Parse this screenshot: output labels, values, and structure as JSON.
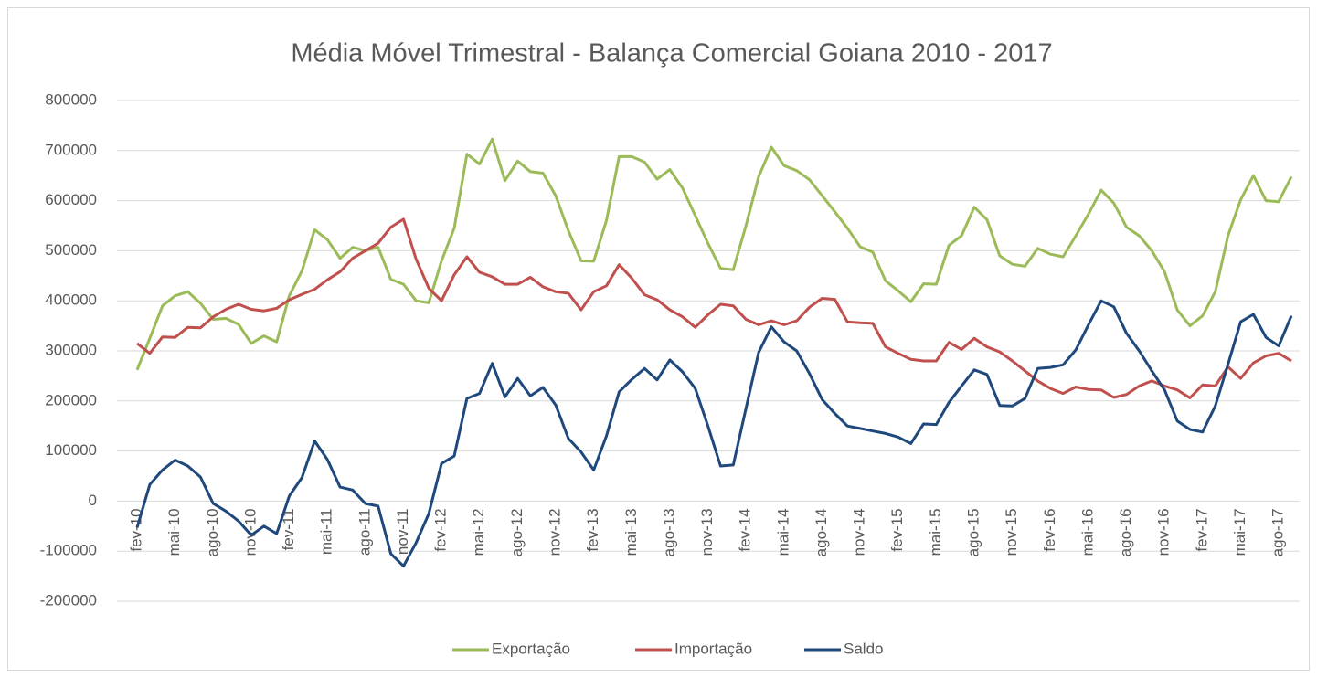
{
  "chart_data": {
    "type": "line",
    "title": "Média Móvel Trimestral - Balança Comercial Goiana 2010 - 2017",
    "categories": [
      "fev-10",
      null,
      null,
      "mai-10",
      null,
      null,
      "ago-10",
      null,
      null,
      "nov-10",
      null,
      null,
      "fev-11",
      null,
      null,
      "mai-11",
      null,
      null,
      "ago-11",
      null,
      null,
      "nov-11",
      null,
      null,
      "fev-12",
      null,
      null,
      "mai-12",
      null,
      null,
      "ago-12",
      null,
      null,
      "nov-12",
      null,
      null,
      "fev-13",
      null,
      null,
      "mai-13",
      null,
      null,
      "ago-13",
      null,
      null,
      "nov-13",
      null,
      null,
      "fev-14",
      null,
      null,
      "mai-14",
      null,
      null,
      "ago-14",
      null,
      null,
      "nov-14",
      null,
      null,
      "fev-15",
      null,
      null,
      "mai-15",
      null,
      null,
      "ago-15",
      null,
      null,
      "nov-15",
      null,
      null,
      "fev-16",
      null,
      null,
      "mai-16",
      null,
      null,
      "ago-16",
      null,
      null,
      "nov-16",
      null,
      null,
      "fev-17",
      null,
      null,
      "mai-17",
      null,
      null,
      "ago-17",
      null
    ],
    "series": [
      {
        "name": "Exportação",
        "color": "#9bbb59",
        "values": [
          262000,
          325000,
          390000,
          410000,
          418000,
          395000,
          363000,
          365000,
          353000,
          315000,
          330000,
          318000,
          410000,
          460000,
          542000,
          522000,
          485000,
          507000,
          500000,
          507000,
          443000,
          433000,
          400000,
          396000,
          480000,
          545000,
          693000,
          673000,
          723000,
          640000,
          679000,
          658000,
          655000,
          610000,
          540000,
          480000,
          479000,
          560000,
          688000,
          688000,
          677000,
          643000,
          662000,
          625000,
          570000,
          515000,
          465000,
          462000,
          550000,
          648000,
          707000,
          670000,
          660000,
          642000,
          610000,
          578000,
          545000,
          508000,
          497000,
          440000,
          420000,
          398000,
          434000,
          433000,
          511000,
          530000,
          587000,
          562000,
          490000,
          473000,
          469000,
          505000,
          493000,
          488000,
          530000,
          573000,
          621000,
          595000,
          547000,
          530000,
          500000,
          458000,
          382000,
          350000,
          370000,
          418000,
          530000,
          602000,
          650000,
          600000,
          598000,
          648000
        ]
      },
      {
        "name": "Importação",
        "color": "#c0504d",
        "values": [
          315000,
          295000,
          328000,
          327000,
          347000,
          346000,
          368000,
          383000,
          393000,
          383000,
          380000,
          385000,
          402000,
          413000,
          423000,
          442000,
          458000,
          485000,
          500000,
          515000,
          547000,
          563000,
          483000,
          425000,
          400000,
          452000,
          488000,
          457000,
          448000,
          433000,
          433000,
          447000,
          428000,
          418000,
          415000,
          382000,
          418000,
          430000,
          472000,
          445000,
          412000,
          402000,
          382000,
          368000,
          347000,
          372000,
          393000,
          390000,
          363000,
          352000,
          360000,
          352000,
          360000,
          387000,
          405000,
          403000,
          358000,
          356000,
          355000,
          308000,
          295000,
          283000,
          280000,
          280000,
          317000,
          303000,
          325000,
          308000,
          298000,
          280000,
          260000,
          240000,
          225000,
          215000,
          228000,
          223000,
          222000,
          207000,
          213000,
          230000,
          240000,
          230000,
          222000,
          206000,
          232000,
          230000,
          268000,
          245000,
          276000,
          290000,
          295000,
          280000
        ]
      },
      {
        "name": "Saldo",
        "color": "#1f497d",
        "values": [
          -53000,
          33000,
          62000,
          82000,
          70000,
          48000,
          -5000,
          -20000,
          -40000,
          -68000,
          -50000,
          -65000,
          10000,
          47000,
          120000,
          83000,
          28000,
          22000,
          -5000,
          -10000,
          -105000,
          -130000,
          -83000,
          -25000,
          75000,
          90000,
          205000,
          215000,
          275000,
          208000,
          245000,
          210000,
          227000,
          192000,
          125000,
          98000,
          62000,
          130000,
          218000,
          243000,
          265000,
          242000,
          282000,
          258000,
          225000,
          150000,
          70000,
          72000,
          185000,
          297000,
          348000,
          318000,
          300000,
          255000,
          203000,
          175000,
          150000,
          145000,
          140000,
          135000,
          128000,
          115000,
          154000,
          153000,
          197000,
          230000,
          262000,
          253000,
          191000,
          190000,
          205000,
          265000,
          267000,
          272000,
          302000,
          352000,
          400000,
          388000,
          335000,
          300000,
          260000,
          222000,
          160000,
          143000,
          138000,
          190000,
          273000,
          358000,
          373000,
          327000,
          310000,
          370000
        ]
      }
    ],
    "ylim": [
      -200000,
      800000
    ],
    "yticks": [
      -200000,
      -100000,
      0,
      100000,
      200000,
      300000,
      400000,
      500000,
      600000,
      700000,
      800000
    ],
    "grid": true,
    "legend": "bottom"
  }
}
